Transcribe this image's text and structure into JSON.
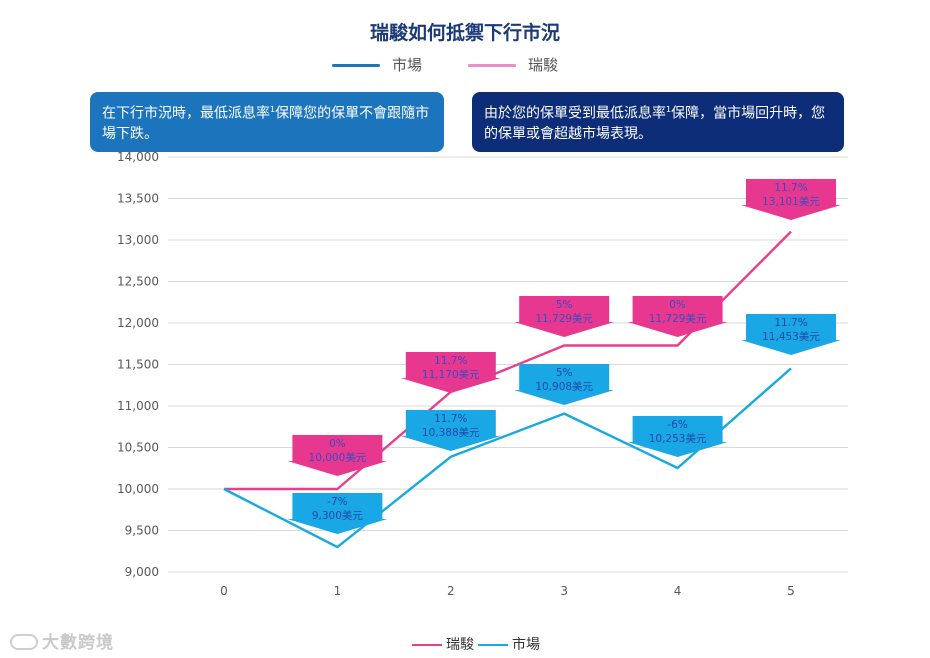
{
  "title": "瑞駿如何抵禦下行市況",
  "legend_top": [
    {
      "name": "市場",
      "color": "#1c75bc"
    },
    {
      "name": "瑞駿",
      "color": "#e88fc8"
    }
  ],
  "callouts": {
    "left": {
      "text_a": "在下行市況時，最低派息率",
      "sup": "1",
      "text_b": "保障您的保單不會跟隨市場下跌。"
    },
    "right": {
      "text_a": "由於您的保單受到最低派息率",
      "sup": "1",
      "text_b": "保障，當市場回升時，您的保單或會超越市場表現。"
    }
  },
  "watermark": "大數跨境",
  "chart_data": {
    "type": "line",
    "x": [
      0,
      1,
      2,
      3,
      4,
      5
    ],
    "ylim": [
      9000,
      14000
    ],
    "yticks": [
      "9,000",
      "9,500",
      "10,000",
      "10,500",
      "11,000",
      "11,500",
      "12,000",
      "12,500",
      "13,000",
      "13,500",
      "14,000"
    ],
    "ytick_values": [
      9000,
      9500,
      10000,
      10500,
      11000,
      11500,
      12000,
      12500,
      13000,
      13500,
      14000
    ],
    "xticks": [
      "0",
      "1",
      "2",
      "3",
      "4",
      "5"
    ],
    "grid": true,
    "legend_position": "bottom",
    "series": [
      {
        "name": "瑞駿",
        "color": "#e83e8c",
        "values": [
          10000,
          10000,
          11170,
          11729,
          11729,
          13101
        ],
        "labels": [
          null,
          {
            "pct": "0%",
            "val": "10,000美元"
          },
          {
            "pct": "11.7%",
            "val": "11,170美元"
          },
          {
            "pct": "5%",
            "val": "11,729美元"
          },
          {
            "pct": "0%",
            "val": "11,729美元"
          },
          {
            "pct": "11.7%",
            "val": "13,101美元"
          }
        ]
      },
      {
        "name": "市場",
        "color": "#17a9e1",
        "values": [
          10000,
          9300,
          10388,
          10908,
          10253,
          11453
        ],
        "labels": [
          null,
          {
            "pct": "-7%",
            "val": "9,300美元"
          },
          {
            "pct": "11.7%",
            "val": "10,388美元"
          },
          {
            "pct": "5%",
            "val": "10,908美元"
          },
          {
            "pct": "-6%",
            "val": "10,253美元"
          },
          {
            "pct": "11.7%",
            "val": "11,453美元"
          }
        ]
      }
    ]
  }
}
